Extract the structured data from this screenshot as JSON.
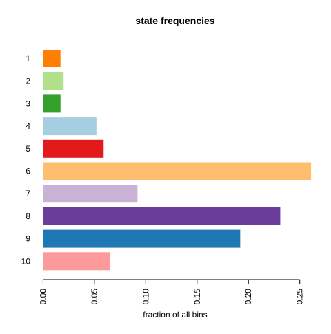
{
  "chart_data": {
    "type": "bar",
    "orientation": "horizontal",
    "title": "state frequencies",
    "xlabel": "fraction of all bins",
    "ylabel": "",
    "xlim": [
      0,
      0.26
    ],
    "x_ticks": [
      "0.00",
      "0.05",
      "0.10",
      "0.15",
      "0.20",
      "0.25"
    ],
    "x_tick_values": [
      0,
      0.05,
      0.1,
      0.15,
      0.2,
      0.25
    ],
    "grid": false,
    "categories": [
      "1",
      "2",
      "3",
      "4",
      "5",
      "6",
      "7",
      "8",
      "9",
      "10"
    ],
    "values": [
      0.017,
      0.02,
      0.017,
      0.052,
      0.059,
      0.261,
      0.092,
      0.231,
      0.192,
      0.065
    ],
    "colors": [
      "#FF7F00",
      "#B2DF8A",
      "#33A02C",
      "#A6CEE3",
      "#E31A1C",
      "#FDBF6F",
      "#CAB2D6",
      "#6A3D9A",
      "#1F78B4",
      "#FB9A99"
    ]
  }
}
